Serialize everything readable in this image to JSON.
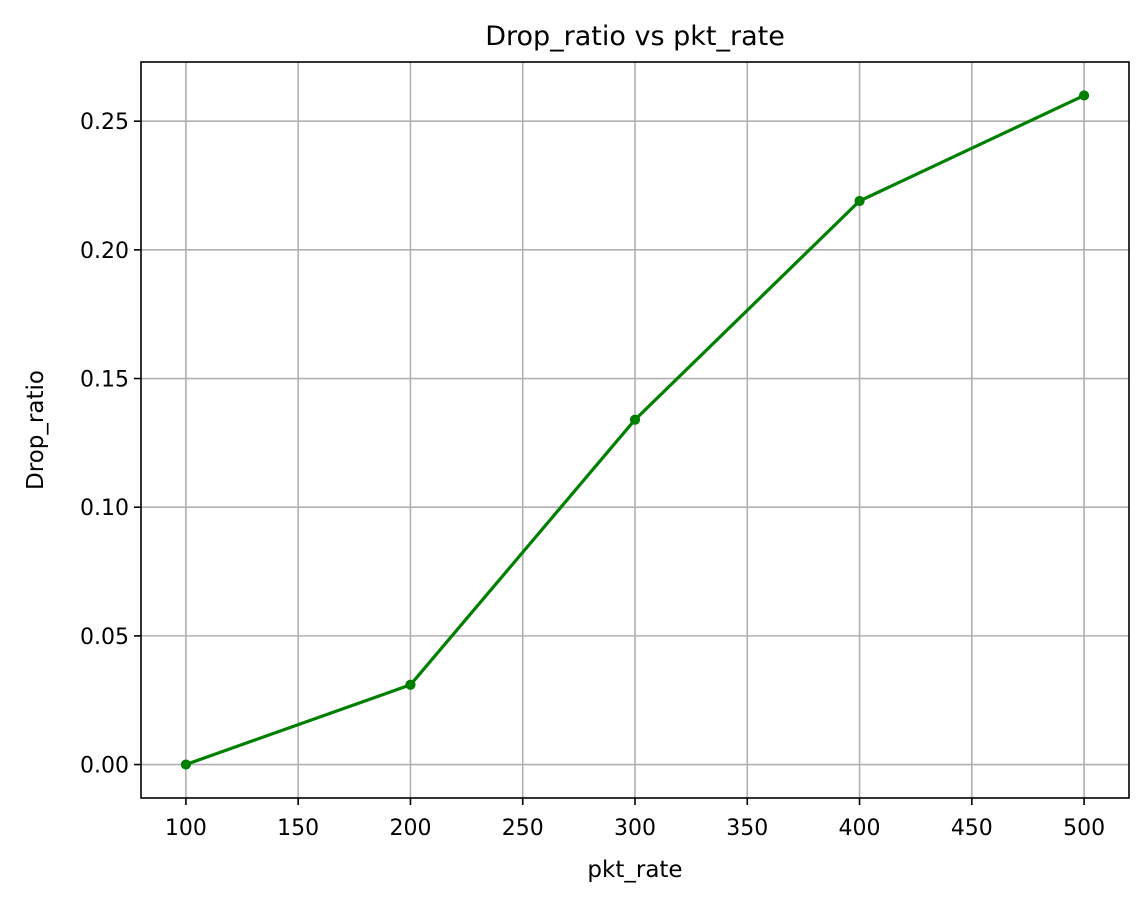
{
  "chart_data": {
    "type": "line",
    "title": "Drop_ratio vs pkt_rate",
    "xlabel": "pkt_rate",
    "ylabel": "Drop_ratio",
    "xlim": [
      80,
      520
    ],
    "ylim": [
      -0.013,
      0.273
    ],
    "grid": true,
    "legend": "none",
    "x_ticks": [
      100,
      150,
      200,
      250,
      300,
      350,
      400,
      450,
      500
    ],
    "x_tick_labels": [
      "100",
      "150",
      "200",
      "250",
      "300",
      "350",
      "400",
      "450",
      "500"
    ],
    "y_ticks": [
      0.0,
      0.05,
      0.1,
      0.15,
      0.2,
      0.25
    ],
    "y_tick_labels": [
      "0.00",
      "0.05",
      "0.10",
      "0.15",
      "0.20",
      "0.25"
    ],
    "series": [
      {
        "color": "#008000",
        "marker": "circle",
        "x": [
          100,
          200,
          300,
          400,
          500
        ],
        "y": [
          0.0,
          0.031,
          0.134,
          0.219,
          0.26
        ]
      }
    ]
  }
}
